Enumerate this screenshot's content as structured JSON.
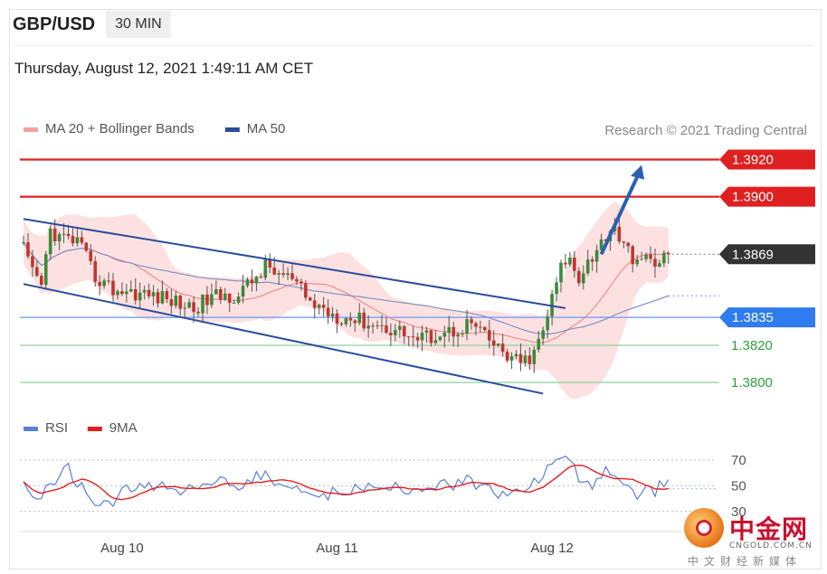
{
  "header": {
    "symbol": "GBP/USD",
    "timeframe": "30 MIN",
    "datetime": "Thursday, August 12, 2021 1:49:11 AM CET"
  },
  "legend": {
    "main": [
      {
        "label": "MA 20 + Bollinger Bands",
        "color": "#f4a0a0"
      },
      {
        "label": "MA 50",
        "color": "#2a4d9b"
      }
    ],
    "rsi": [
      {
        "label": "RSI",
        "color": "#5b7fd6"
      },
      {
        "label": "9MA",
        "color": "#e02020"
      }
    ]
  },
  "credit": "Research © 2021 Trading Central",
  "watermark": {
    "cn": "中金网",
    "en": "CNGOLD.COM.CN",
    "sub": "中文财经新媒体"
  },
  "chart_data": {
    "type": "candlestick",
    "y_range": [
      1.3775,
      1.3935
    ],
    "rsi_range": [
      20,
      80
    ],
    "x_labels": [
      {
        "label": "Aug 10",
        "index": 22
      },
      {
        "label": "Aug 11",
        "index": 70
      },
      {
        "label": "Aug 12",
        "index": 118
      }
    ],
    "levels": [
      {
        "value": 1.392,
        "label": "1.3920",
        "color": "#e02020",
        "style": "resistance"
      },
      {
        "value": 1.39,
        "label": "1.3900",
        "color": "#e02020",
        "style": "resistance"
      },
      {
        "value": 1.3869,
        "label": "1.3869",
        "color": "#333333",
        "style": "current"
      },
      {
        "value": 1.3835,
        "label": "1.3835",
        "color": "#3b82f6",
        "style": "pivot"
      },
      {
        "value": 1.382,
        "label": "1.3820",
        "color": "#2e9e3e",
        "style": "support"
      },
      {
        "value": 1.38,
        "label": "1.3800",
        "color": "#2e9e3e",
        "style": "support"
      }
    ],
    "rsi_levels": [
      70,
      50,
      30
    ],
    "trend_channel": {
      "upper": {
        "from": [
          0,
          1.3888
        ],
        "to": [
          121,
          1.384
        ]
      },
      "lower": {
        "from": [
          0,
          1.3853
        ],
        "to": [
          116,
          1.3794
        ]
      }
    },
    "target_arrow": {
      "from": [
        129,
        1.3869
      ],
      "to": [
        138,
        1.3917
      ]
    },
    "current_price": 1.3869
  }
}
